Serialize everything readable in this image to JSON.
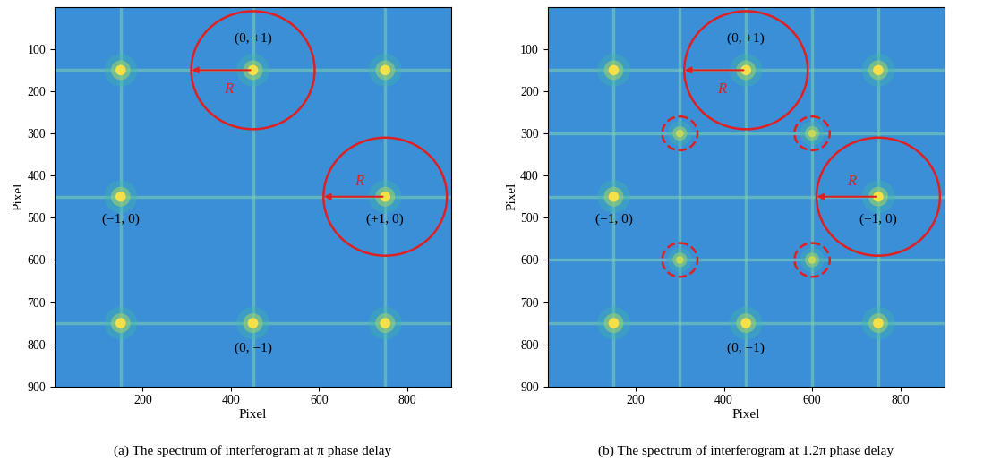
{
  "chart_data": [
    {
      "type": "scatter",
      "caption": "(a) The spectrum of interferogram at π phase delay",
      "x_label": "Pixel",
      "y_label": "Pixel",
      "xlim": [
        0,
        900
      ],
      "ylim": [
        900,
        0
      ],
      "xticks": [
        200,
        400,
        600,
        800
      ],
      "yticks": [
        100,
        200,
        300,
        400,
        500,
        600,
        700,
        800,
        900
      ],
      "grid": false,
      "streaks": {
        "x": [
          150,
          450,
          750
        ],
        "y": [
          150,
          450,
          750
        ]
      },
      "series": [
        {
          "marker": "o",
          "color": "#f5e04a",
          "x": [
            150,
            450,
            750,
            150,
            750,
            150,
            450,
            750
          ],
          "y": [
            150,
            150,
            150,
            450,
            450,
            750,
            750,
            750
          ]
        }
      ],
      "circles": [
        {
          "center": [
            450,
            150
          ],
          "radius": 140,
          "line_style": "solid",
          "color": "#e02020"
        },
        {
          "center": [
            750,
            450
          ],
          "radius": 140,
          "line_style": "solid",
          "color": "#e02020"
        }
      ],
      "arrows": [
        {
          "from": [
            450,
            150
          ],
          "to": [
            305,
            150
          ],
          "label": "R",
          "label_at": [
            395,
            195
          ]
        },
        {
          "from": [
            750,
            450
          ],
          "to": [
            605,
            450
          ],
          "label": "R",
          "label_at": [
            690,
            415
          ]
        }
      ],
      "annotations": [
        {
          "text": "(0, +1)",
          "at": [
            450,
            75
          ]
        },
        {
          "text": "(−1, 0)",
          "at": [
            150,
            505
          ]
        },
        {
          "text": "(+1, 0)",
          "at": [
            750,
            505
          ]
        },
        {
          "text": "(0, −1)",
          "at": [
            450,
            810
          ]
        }
      ]
    },
    {
      "type": "scatter",
      "caption": "(b) The spectrum of interferogram at 1.2π phase delay",
      "x_label": "Pixel",
      "y_label": "Pixel",
      "xlim": [
        0,
        900
      ],
      "ylim": [
        900,
        0
      ],
      "xticks": [
        200,
        400,
        600,
        800
      ],
      "yticks": [
        100,
        200,
        300,
        400,
        500,
        600,
        700,
        800,
        900
      ],
      "grid": false,
      "streaks": {
        "x": [
          150,
          300,
          450,
          600,
          750
        ],
        "y": [
          150,
          300,
          450,
          600,
          750
        ]
      },
      "series": [
        {
          "marker": "o",
          "color": "#f5e04a",
          "x": [
            150,
            450,
            750,
            150,
            750,
            150,
            450,
            750
          ],
          "y": [
            150,
            150,
            150,
            450,
            450,
            750,
            750,
            750
          ]
        },
        {
          "marker": "o",
          "color": "#c8d858",
          "x": [
            300,
            600,
            300,
            600
          ],
          "y": [
            300,
            300,
            600,
            600
          ]
        }
      ],
      "circles": [
        {
          "center": [
            450,
            150
          ],
          "radius": 140,
          "line_style": "solid",
          "color": "#e02020"
        },
        {
          "center": [
            750,
            450
          ],
          "radius": 140,
          "line_style": "solid",
          "color": "#e02020"
        },
        {
          "center": [
            300,
            300
          ],
          "radius": 40,
          "line_style": "dashed",
          "color": "#e02020"
        },
        {
          "center": [
            600,
            300
          ],
          "radius": 40,
          "line_style": "dashed",
          "color": "#e02020"
        },
        {
          "center": [
            300,
            600
          ],
          "radius": 40,
          "line_style": "dashed",
          "color": "#e02020"
        },
        {
          "center": [
            600,
            600
          ],
          "radius": 40,
          "line_style": "dashed",
          "color": "#e02020"
        }
      ],
      "arrows": [
        {
          "from": [
            450,
            150
          ],
          "to": [
            305,
            150
          ],
          "label": "R",
          "label_at": [
            395,
            195
          ]
        },
        {
          "from": [
            750,
            450
          ],
          "to": [
            605,
            450
          ],
          "label": "R",
          "label_at": [
            690,
            415
          ]
        }
      ],
      "annotations": [
        {
          "text": "(0, +1)",
          "at": [
            450,
            75
          ]
        },
        {
          "text": "(−1, 0)",
          "at": [
            150,
            505
          ]
        },
        {
          "text": "(+1, 0)",
          "at": [
            750,
            505
          ]
        },
        {
          "text": "(0, −1)",
          "at": [
            450,
            810
          ]
        }
      ]
    }
  ]
}
